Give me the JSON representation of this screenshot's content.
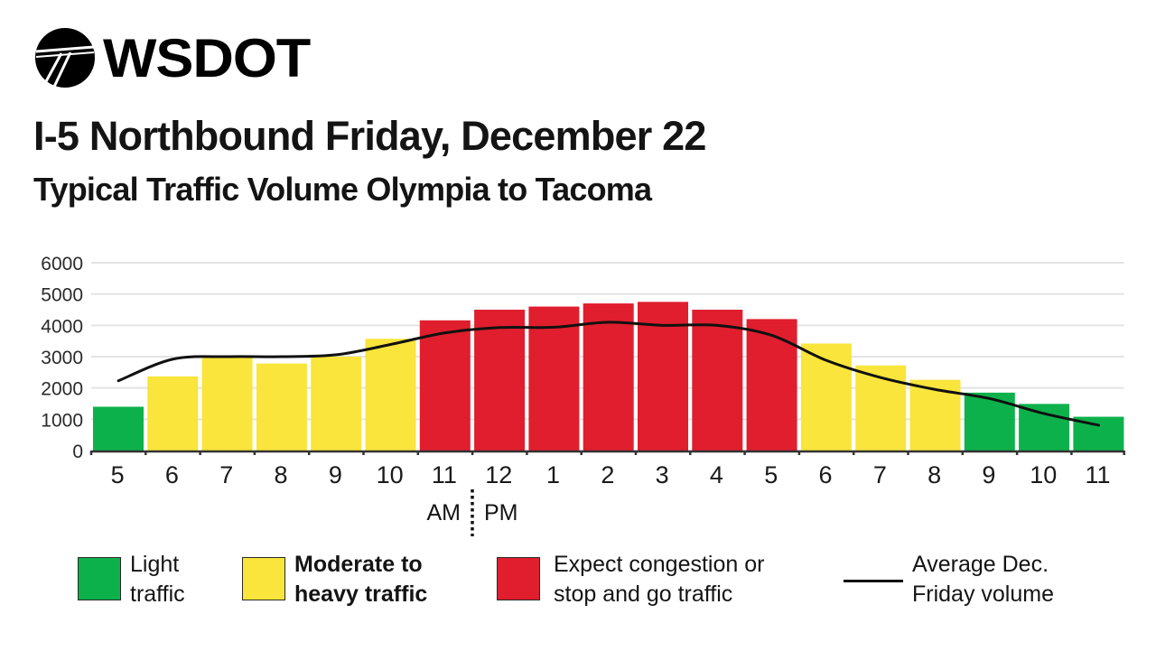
{
  "header": {
    "logo_text": "WSDOT",
    "title": "I-5 Northbound Friday, December 22",
    "subtitle": "Typical Traffic Volume Olympia to Tacoma"
  },
  "colors": {
    "light": "#0db14b",
    "moderate": "#f9e53b",
    "congestion": "#e01e2d",
    "average_line": "#111111",
    "gridline": "#e3e3e3",
    "axis": "#333333"
  },
  "legend": [
    {
      "key": "light",
      "line1": "Light",
      "line2": "traffic"
    },
    {
      "key": "moderate",
      "line1": "Moderate to",
      "line2": "heavy traffic"
    },
    {
      "key": "congestion",
      "line1": "Expect congestion or",
      "line2": "stop and go traffic"
    },
    {
      "key": "average",
      "line1": "Average Dec.",
      "line2": "Friday volume"
    }
  ],
  "axis": {
    "am_label": "AM",
    "pm_label": "PM"
  },
  "chart_data": {
    "type": "bar",
    "title": "I-5 Northbound Friday, December 22",
    "subtitle": "Typical Traffic Volume Olympia to Tacoma",
    "xlabel": "",
    "ylabel": "",
    "ylim": [
      0,
      6000
    ],
    "yticks": [
      0,
      1000,
      2000,
      3000,
      4000,
      5000,
      6000
    ],
    "grid": true,
    "legend_position": "bottom",
    "categories": [
      "5",
      "6",
      "7",
      "8",
      "9",
      "10",
      "11",
      "12",
      "1",
      "2",
      "3",
      "4",
      "5",
      "6",
      "7",
      "8",
      "9",
      "10",
      "11"
    ],
    "category_periods": [
      "AM",
      "AM",
      "AM",
      "AM",
      "AM",
      "AM",
      "AM",
      "PM",
      "PM",
      "PM",
      "PM",
      "PM",
      "PM",
      "PM",
      "PM",
      "PM",
      "PM",
      "PM",
      "PM"
    ],
    "series": [
      {
        "name": "Typical traffic volume",
        "type": "bar",
        "values": [
          1400,
          2370,
          3000,
          2780,
          3000,
          3570,
          4160,
          4500,
          4600,
          4700,
          4750,
          4500,
          4200,
          3420,
          2720,
          2260,
          1850,
          1490,
          1080
        ],
        "levels": [
          "light",
          "moderate",
          "moderate",
          "moderate",
          "moderate",
          "moderate",
          "congestion",
          "congestion",
          "congestion",
          "congestion",
          "congestion",
          "congestion",
          "congestion",
          "moderate",
          "moderate",
          "moderate",
          "light",
          "light",
          "light"
        ]
      },
      {
        "name": "Average Dec. Friday volume",
        "type": "line",
        "values": [
          2230,
          2920,
          3000,
          3000,
          3060,
          3390,
          3760,
          3930,
          3940,
          4100,
          4000,
          4000,
          3680,
          2880,
          2330,
          1950,
          1660,
          1180,
          810
        ]
      }
    ]
  }
}
